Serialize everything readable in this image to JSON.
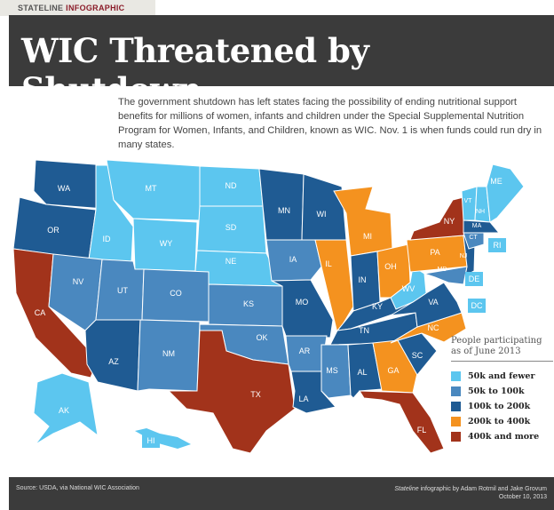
{
  "header": {
    "kicker_a": "STATELINE ",
    "kicker_b": "INFOGRAPHIC",
    "title": "WIC Threatened by Shutdown"
  },
  "intro": "The government shutdown has left states facing the possibility of ending nutritional support benefits for millions of women, infants and children under the Special Supplemental Nutrition Program for Women, Infants, and Children, known as WIC. Nov. 1 is when funds could run dry in many states.",
  "legend": {
    "title_1": "People participating",
    "title_2": "as of June 2013",
    "items": [
      {
        "label": "50k and fewer",
        "color": "#5cc6ef"
      },
      {
        "label": "50k to 100k",
        "color": "#4a88bf"
      },
      {
        "label": "100k to 200k",
        "color": "#1f5b93"
      },
      {
        "label": "200k to 400k",
        "color": "#f4921f"
      },
      {
        "label": "400k and more",
        "color": "#a2331b"
      }
    ]
  },
  "states": [
    {
      "id": "WA",
      "cat": 2
    },
    {
      "id": "OR",
      "cat": 2
    },
    {
      "id": "CA",
      "cat": 4
    },
    {
      "id": "ID",
      "cat": 0
    },
    {
      "id": "MT",
      "cat": 0
    },
    {
      "id": "WY",
      "cat": 0
    },
    {
      "id": "ND",
      "cat": 0
    },
    {
      "id": "SD",
      "cat": 0
    },
    {
      "id": "NE",
      "cat": 0
    },
    {
      "id": "NV",
      "cat": 1
    },
    {
      "id": "UT",
      "cat": 1
    },
    {
      "id": "CO",
      "cat": 1
    },
    {
      "id": "AZ",
      "cat": 2
    },
    {
      "id": "NM",
      "cat": 1
    },
    {
      "id": "KS",
      "cat": 1
    },
    {
      "id": "OK",
      "cat": 1
    },
    {
      "id": "TX",
      "cat": 4
    },
    {
      "id": "MN",
      "cat": 2
    },
    {
      "id": "IA",
      "cat": 1
    },
    {
      "id": "MO",
      "cat": 2
    },
    {
      "id": "AR",
      "cat": 1
    },
    {
      "id": "LA",
      "cat": 2
    },
    {
      "id": "WI",
      "cat": 2
    },
    {
      "id": "IL",
      "cat": 3
    },
    {
      "id": "MI",
      "cat": 3
    },
    {
      "id": "IN",
      "cat": 2
    },
    {
      "id": "OH",
      "cat": 3
    },
    {
      "id": "KY",
      "cat": 2
    },
    {
      "id": "TN",
      "cat": 2
    },
    {
      "id": "MS",
      "cat": 1
    },
    {
      "id": "AL",
      "cat": 2
    },
    {
      "id": "GA",
      "cat": 3
    },
    {
      "id": "FL",
      "cat": 4
    },
    {
      "id": "SC",
      "cat": 2
    },
    {
      "id": "NC",
      "cat": 3
    },
    {
      "id": "VA",
      "cat": 2
    },
    {
      "id": "WV",
      "cat": 0
    },
    {
      "id": "PA",
      "cat": 3
    },
    {
      "id": "NY",
      "cat": 4
    },
    {
      "id": "NJ",
      "cat": 2
    },
    {
      "id": "MD",
      "cat": 1
    },
    {
      "id": "VT",
      "cat": 0
    },
    {
      "id": "NH",
      "cat": 0
    },
    {
      "id": "ME",
      "cat": 0
    },
    {
      "id": "MA",
      "cat": 2
    },
    {
      "id": "CT",
      "cat": 1
    },
    {
      "id": "AK",
      "cat": 0
    },
    {
      "id": "HI",
      "cat": 0
    },
    {
      "id": "RI",
      "cat": 0
    },
    {
      "id": "DE",
      "cat": 0
    },
    {
      "id": "DC",
      "cat": 0
    }
  ],
  "footer": {
    "source": "Source: USDA, via National WIC Association",
    "credit_em": "Stateline",
    "credit": " infographic by Adam Rotmil and Jake Grovum",
    "date": "October 10, 2013"
  }
}
